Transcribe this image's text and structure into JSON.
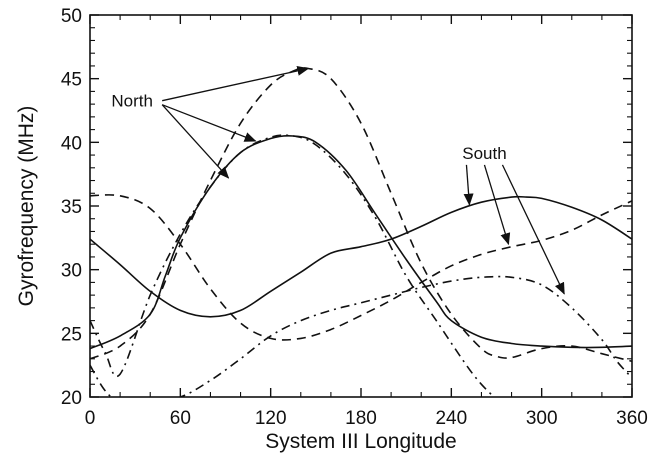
{
  "chart_data": {
    "type": "line",
    "title": "",
    "xlabel": "System III Longitude",
    "ylabel": "Gyrofrequency (MHz)",
    "xlim": [
      0,
      360
    ],
    "ylim": [
      20,
      50
    ],
    "xticks": [
      0,
      60,
      120,
      180,
      240,
      300,
      360
    ],
    "yticks": [
      20,
      25,
      30,
      35,
      40,
      45,
      50
    ],
    "grid": false,
    "series": [
      {
        "hemisphere": "North",
        "style": "solid",
        "x": [
          0,
          20,
          40,
          50,
          60,
          80,
          100,
          120,
          135,
          150,
          170,
          190,
          210,
          230,
          240,
          260,
          280,
          300,
          320,
          340,
          360
        ],
        "y": [
          23.8,
          24.8,
          26.5,
          29.5,
          32.5,
          36.5,
          39.2,
          40.3,
          40.5,
          40.0,
          37.8,
          34.3,
          30.8,
          27.5,
          26.0,
          24.7,
          24.2,
          24.0,
          23.9,
          23.9,
          24.0
        ]
      },
      {
        "hemisphere": "North",
        "style": "dashed",
        "x": [
          0,
          20,
          40,
          60,
          80,
          100,
          120,
          135,
          145,
          160,
          180,
          200,
          220,
          240,
          260,
          270,
          280,
          300,
          320,
          340,
          360
        ],
        "y": [
          23.0,
          24.0,
          26.5,
          32.0,
          37.0,
          41.5,
          44.5,
          45.6,
          45.8,
          45.0,
          41.5,
          36.0,
          30.5,
          26.5,
          23.8,
          23.2,
          23.1,
          23.8,
          24.0,
          23.4,
          22.8
        ]
      },
      {
        "hemisphere": "North",
        "style": "dashdot",
        "x": [
          0,
          10,
          20,
          40,
          60,
          80,
          100,
          120,
          135,
          150,
          170,
          190,
          210,
          230,
          250,
          260,
          270
        ],
        "y": [
          26.0,
          23.5,
          21.8,
          28.0,
          32.8,
          36.5,
          39.2,
          40.4,
          40.5,
          39.8,
          37.5,
          34.0,
          29.5,
          26.0,
          22.5,
          21.0,
          19.8
        ]
      },
      {
        "hemisphere": "South",
        "style": "solid",
        "x": [
          0,
          20,
          40,
          60,
          80,
          100,
          120,
          140,
          160,
          180,
          200,
          220,
          240,
          260,
          280,
          290,
          300,
          320,
          340,
          360
        ],
        "y": [
          32.4,
          30.4,
          28.3,
          26.8,
          26.3,
          26.8,
          28.3,
          29.8,
          31.3,
          31.8,
          32.4,
          33.4,
          34.5,
          35.3,
          35.7,
          35.7,
          35.6,
          34.9,
          33.9,
          32.4
        ]
      },
      {
        "hemisphere": "South",
        "style": "dashed",
        "x": [
          0,
          20,
          40,
          60,
          80,
          100,
          120,
          140,
          160,
          180,
          200,
          220,
          240,
          260,
          280,
          300,
          320,
          340,
          360
        ],
        "y": [
          35.8,
          35.8,
          34.8,
          32.0,
          28.5,
          25.8,
          24.6,
          24.6,
          25.3,
          26.4,
          27.6,
          29.0,
          30.3,
          31.2,
          31.8,
          32.3,
          33.1,
          34.3,
          35.4
        ]
      },
      {
        "hemisphere": "South",
        "style": "dashdot",
        "x": [
          0,
          10,
          20,
          40,
          60,
          80,
          100,
          120,
          140,
          160,
          180,
          200,
          220,
          240,
          260,
          280,
          300,
          320,
          340,
          350,
          360
        ],
        "y": [
          22.5,
          20.5,
          19.7,
          19.7,
          20.0,
          21.3,
          23.0,
          24.8,
          26.0,
          26.8,
          27.4,
          28.0,
          28.6,
          29.1,
          29.4,
          29.4,
          28.8,
          27.0,
          24.5,
          22.8,
          21.5
        ]
      }
    ],
    "annotations": [
      {
        "label": "North",
        "label_at": [
          28,
          42.8
        ],
        "targets": [
          [
            145,
            45.8
          ],
          [
            110,
            40.1
          ],
          [
            92,
            37.2
          ]
        ]
      },
      {
        "label": "South",
        "label_at": [
          262,
          38.7
        ],
        "targets": [
          [
            252,
            35.1
          ],
          [
            278,
            32.0
          ],
          [
            315,
            28.1
          ]
        ]
      }
    ]
  }
}
